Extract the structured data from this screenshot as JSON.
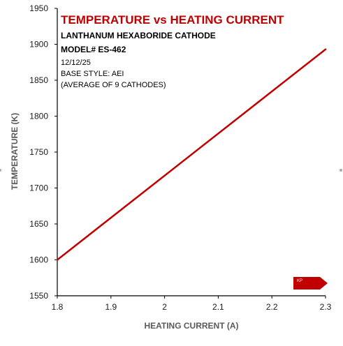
{
  "chart_data": {
    "type": "line",
    "title": "TEMPERATURE vs HEATING CURRENT",
    "subtitle_lines": [
      "LANTHANUM HEXABORIDE CATHODE",
      "MODEL# ES-462",
      "12/12/25",
      "BASE STYLE: AEI",
      "(AVERAGE OF 9 CATHODES)"
    ],
    "xlabel": "HEATING CURRENT (A)",
    "ylabel": "TEMPERATURE (K)",
    "xlim": [
      1.8,
      2.3
    ],
    "ylim": [
      1550,
      1950
    ],
    "x_ticks": [
      1.8,
      1.9,
      2.0,
      2.1,
      2.2,
      2.3
    ],
    "x_tick_labels": [
      "1.8",
      "1.9",
      "2",
      "2.1",
      "2.2",
      "2.3"
    ],
    "y_ticks": [
      1550,
      1600,
      1650,
      1700,
      1750,
      1800,
      1850,
      1900,
      1950
    ],
    "y_tick_labels": [
      "1550",
      "1600",
      "1650",
      "1700",
      "1750",
      "1800",
      "1850",
      "1900",
      "1950"
    ],
    "grid": false,
    "legend": "none",
    "series": [
      {
        "x": [
          1.8,
          2.3
        ],
        "y": [
          1600,
          1893
        ]
      }
    ],
    "colors": {
      "line": "#c00000",
      "title": "#c00000",
      "axis": "#000000",
      "logo": "#c00000"
    },
    "logo_text": "KP"
  }
}
